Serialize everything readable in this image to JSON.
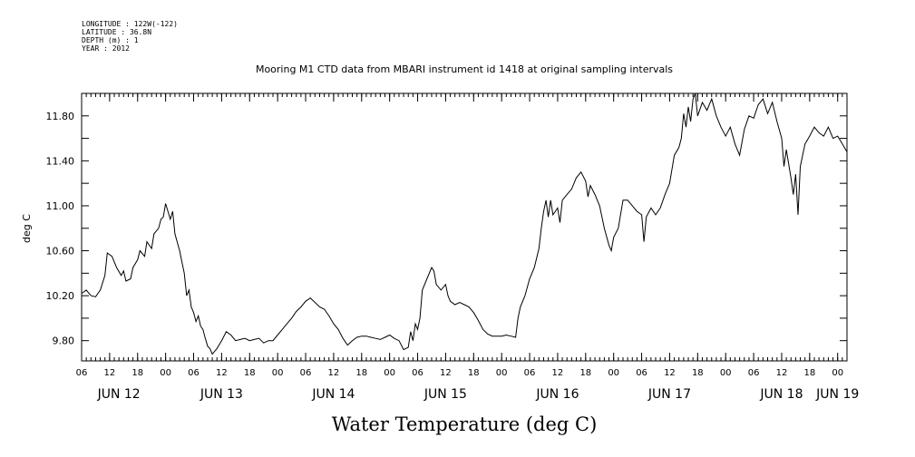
{
  "meta": {
    "longitude": "LONGITUDE : 122W(-122)",
    "latitude": "LATITUDE : 36.8N",
    "depth": "DEPTH (m) : 1",
    "year": "YEAR : 2012"
  },
  "chart_data": {
    "type": "line",
    "title": "Mooring M1 CTD data from MBARI instrument id 1418 at original sampling intervals",
    "xlabel": "Water Temperature (deg C)",
    "ylabel": "deg C",
    "x_unit": "hours from JUN 12 06:00 (2012)",
    "xlim": [
      0,
      164
    ],
    "ylim": [
      9.62,
      12.0
    ],
    "yticks": [
      9.8,
      10.2,
      10.6,
      11.0,
      11.4,
      11.8
    ],
    "ytick_labels": [
      "9.80",
      "10.20",
      "10.60",
      "11.00",
      "11.40",
      "11.80"
    ],
    "xtick_hours": [
      0,
      6,
      12,
      18,
      24,
      30,
      36,
      42,
      48,
      54,
      60,
      66,
      72,
      78,
      84,
      90,
      96,
      102,
      108,
      114,
      120,
      126,
      132,
      138,
      144,
      150,
      156,
      162
    ],
    "xtick_labels": [
      "06",
      "12",
      "18",
      "00",
      "06",
      "12",
      "18",
      "00",
      "06",
      "12",
      "18",
      "00",
      "06",
      "12",
      "18",
      "00",
      "06",
      "12",
      "18",
      "00",
      "06",
      "12",
      "18",
      "00",
      "06",
      "12",
      "18",
      "00"
    ],
    "day_labels": [
      {
        "label": "JUN 12",
        "hour": 8
      },
      {
        "label": "JUN 13",
        "hour": 30
      },
      {
        "label": "JUN 14",
        "hour": 54
      },
      {
        "label": "JUN 15",
        "hour": 78
      },
      {
        "label": "JUN 16",
        "hour": 102
      },
      {
        "label": "JUN 17",
        "hour": 126
      },
      {
        "label": "JUN 18",
        "hour": 150
      },
      {
        "label": "JUN 19",
        "hour": 162
      }
    ],
    "series": [
      {
        "color": "#000000",
        "points": [
          [
            0,
            10.22
          ],
          [
            1,
            10.25
          ],
          [
            2,
            10.2
          ],
          [
            3,
            10.19
          ],
          [
            4,
            10.25
          ],
          [
            5,
            10.38
          ],
          [
            5.5,
            10.58
          ],
          [
            6.5,
            10.55
          ],
          [
            7.5,
            10.45
          ],
          [
            8.5,
            10.38
          ],
          [
            9,
            10.42
          ],
          [
            9.5,
            10.33
          ],
          [
            10.5,
            10.35
          ],
          [
            11,
            10.45
          ],
          [
            12,
            10.52
          ],
          [
            12.5,
            10.6
          ],
          [
            13.5,
            10.55
          ],
          [
            14,
            10.68
          ],
          [
            15,
            10.62
          ],
          [
            15.5,
            10.75
          ],
          [
            16.5,
            10.8
          ],
          [
            17,
            10.88
          ],
          [
            17.5,
            10.9
          ],
          [
            18,
            11.02
          ],
          [
            19,
            10.88
          ],
          [
            19.5,
            10.95
          ],
          [
            20,
            10.75
          ],
          [
            21,
            10.6
          ],
          [
            21.5,
            10.5
          ],
          [
            22,
            10.4
          ],
          [
            22.5,
            10.2
          ],
          [
            23,
            10.25
          ],
          [
            23.5,
            10.1
          ],
          [
            24,
            10.05
          ],
          [
            24.5,
            9.97
          ],
          [
            25,
            10.02
          ],
          [
            25.5,
            9.93
          ],
          [
            26,
            9.9
          ],
          [
            26.5,
            9.82
          ],
          [
            27,
            9.75
          ],
          [
            27.5,
            9.73
          ],
          [
            28,
            9.68
          ],
          [
            29,
            9.73
          ],
          [
            30,
            9.8
          ],
          [
            31,
            9.88
          ],
          [
            32,
            9.85
          ],
          [
            33,
            9.8
          ],
          [
            34,
            9.81
          ],
          [
            35,
            9.82
          ],
          [
            36,
            9.8
          ],
          [
            37,
            9.81
          ],
          [
            38,
            9.82
          ],
          [
            39,
            9.78
          ],
          [
            40,
            9.8
          ],
          [
            41,
            9.8
          ],
          [
            42,
            9.85
          ],
          [
            43,
            9.9
          ],
          [
            44,
            9.95
          ],
          [
            45,
            10.0
          ],
          [
            46,
            10.06
          ],
          [
            47,
            10.1
          ],
          [
            48,
            10.15
          ],
          [
            49,
            10.18
          ],
          [
            50,
            10.14
          ],
          [
            51,
            10.1
          ],
          [
            52,
            10.08
          ],
          [
            53,
            10.02
          ],
          [
            54,
            9.95
          ],
          [
            55,
            9.9
          ],
          [
            56,
            9.82
          ],
          [
            57,
            9.76
          ],
          [
            58,
            9.8
          ],
          [
            59,
            9.83
          ],
          [
            60,
            9.84
          ],
          [
            61,
            9.84
          ],
          [
            62,
            9.83
          ],
          [
            63,
            9.82
          ],
          [
            64,
            9.81
          ],
          [
            65,
            9.83
          ],
          [
            66,
            9.85
          ],
          [
            67,
            9.82
          ],
          [
            68,
            9.8
          ],
          [
            69,
            9.72
          ],
          [
            70,
            9.74
          ],
          [
            70.5,
            9.88
          ],
          [
            71,
            9.8
          ],
          [
            71.5,
            9.95
          ],
          [
            72,
            9.9
          ],
          [
            72.5,
            10.0
          ],
          [
            73,
            10.25
          ],
          [
            74,
            10.35
          ],
          [
            75,
            10.45
          ],
          [
            75.5,
            10.42
          ],
          [
            76,
            10.3
          ],
          [
            77,
            10.25
          ],
          [
            78,
            10.3
          ],
          [
            78.5,
            10.2
          ],
          [
            79,
            10.15
          ],
          [
            80,
            10.12
          ],
          [
            81,
            10.14
          ],
          [
            82,
            10.12
          ],
          [
            83,
            10.1
          ],
          [
            84,
            10.05
          ],
          [
            85,
            9.98
          ],
          [
            86,
            9.9
          ],
          [
            87,
            9.86
          ],
          [
            88,
            9.84
          ],
          [
            89,
            9.84
          ],
          [
            90,
            9.84
          ],
          [
            91,
            9.85
          ],
          [
            92,
            9.84
          ],
          [
            93,
            9.83
          ],
          [
            93.5,
            10.0
          ],
          [
            94,
            10.1
          ],
          [
            95,
            10.2
          ],
          [
            96,
            10.35
          ],
          [
            97,
            10.45
          ],
          [
            98,
            10.62
          ],
          [
            98.5,
            10.8
          ],
          [
            99,
            10.95
          ],
          [
            99.5,
            11.05
          ],
          [
            100,
            10.9
          ],
          [
            100.5,
            11.05
          ],
          [
            101,
            10.92
          ],
          [
            102,
            10.98
          ],
          [
            102.5,
            10.85
          ],
          [
            103,
            11.05
          ],
          [
            104,
            11.1
          ],
          [
            105,
            11.15
          ],
          [
            106,
            11.25
          ],
          [
            107,
            11.3
          ],
          [
            108,
            11.22
          ],
          [
            108.5,
            11.08
          ],
          [
            109,
            11.18
          ],
          [
            110,
            11.1
          ],
          [
            111,
            11.0
          ],
          [
            112,
            10.8
          ],
          [
            113,
            10.65
          ],
          [
            113.5,
            10.6
          ],
          [
            114,
            10.72
          ],
          [
            115,
            10.8
          ],
          [
            116,
            11.05
          ],
          [
            117,
            11.05
          ],
          [
            118,
            11.0
          ],
          [
            119,
            10.95
          ],
          [
            120,
            10.92
          ],
          [
            120.5,
            10.68
          ],
          [
            121,
            10.9
          ],
          [
            122,
            10.98
          ],
          [
            123,
            10.92
          ],
          [
            124,
            10.98
          ],
          [
            125,
            11.1
          ],
          [
            126,
            11.2
          ],
          [
            127,
            11.45
          ],
          [
            128,
            11.52
          ],
          [
            128.5,
            11.6
          ],
          [
            129,
            11.82
          ],
          [
            129.5,
            11.7
          ],
          [
            130,
            11.88
          ],
          [
            130.5,
            11.75
          ],
          [
            131,
            11.95
          ],
          [
            131.5,
            12.0
          ],
          [
            132,
            11.8
          ],
          [
            133,
            11.92
          ],
          [
            134,
            11.85
          ],
          [
            135,
            11.95
          ],
          [
            136,
            11.8
          ],
          [
            137,
            11.7
          ],
          [
            138,
            11.62
          ],
          [
            139,
            11.7
          ],
          [
            140,
            11.55
          ],
          [
            141,
            11.45
          ],
          [
            142,
            11.68
          ],
          [
            143,
            11.8
          ],
          [
            144,
            11.78
          ],
          [
            145,
            11.9
          ],
          [
            146,
            11.95
          ],
          [
            147,
            11.82
          ],
          [
            148,
            11.92
          ],
          [
            149,
            11.75
          ],
          [
            150,
            11.6
          ],
          [
            150.5,
            11.35
          ],
          [
            151,
            11.5
          ],
          [
            152,
            11.25
          ],
          [
            152.5,
            11.1
          ],
          [
            153,
            11.28
          ],
          [
            153.5,
            10.92
          ],
          [
            154,
            11.35
          ],
          [
            155,
            11.55
          ],
          [
            156,
            11.62
          ],
          [
            157,
            11.7
          ],
          [
            158,
            11.65
          ],
          [
            159,
            11.62
          ],
          [
            160,
            11.7
          ],
          [
            161,
            11.6
          ],
          [
            162,
            11.62
          ],
          [
            163,
            11.55
          ],
          [
            164,
            11.48
          ]
        ]
      }
    ]
  }
}
